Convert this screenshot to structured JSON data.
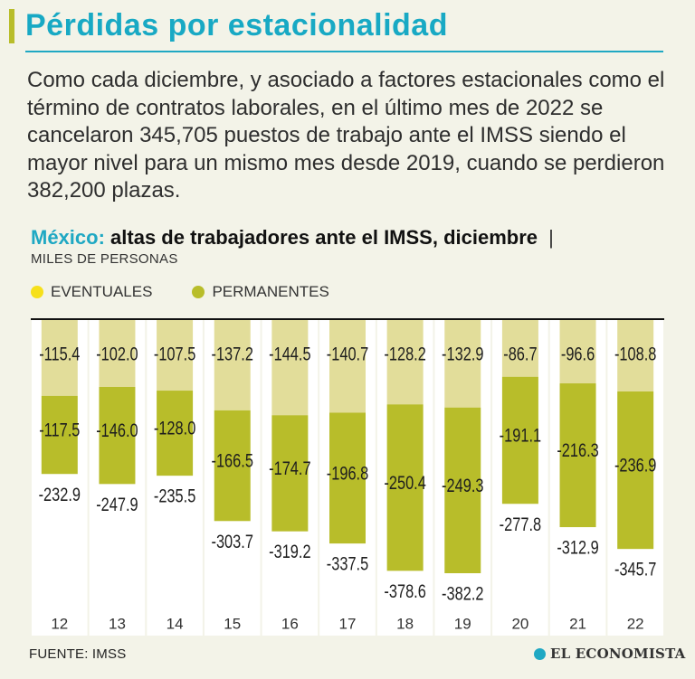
{
  "header": {
    "title": "Pérdidas por estacionalidad",
    "intro": "Como cada diciembre, y asociado a factores estacionales como el término de contratos laborales, en el último mes de 2022 se cancelaron 345,705 puestos de trabajo ante el IMSS siendo el mayor nivel para un mismo mes desde 2019, cuando se perdieron 382,200 plazas."
  },
  "chart_header": {
    "country": "México:",
    "title": "altas de trabajadores ante el IMSS, diciembre",
    "separator": "|",
    "units": "MILES DE PERSONAS"
  },
  "colors": {
    "eventuales": "#e2dd9a",
    "permanentes": "#b8bd2a",
    "legend_eventuales": "#f6e01b",
    "accent": "#1fa8c3"
  },
  "chart_data": {
    "type": "bar",
    "stacked": true,
    "title": "México: altas de trabajadores ante el IMSS, diciembre",
    "ylabel": "MILES DE PERSONAS",
    "legend": [
      "EVENTUALES",
      "PERMANENTES"
    ],
    "categories": [
      "12",
      "13",
      "14",
      "15",
      "16",
      "17",
      "18",
      "19",
      "20",
      "21",
      "22"
    ],
    "series": [
      {
        "name": "EVENTUALES",
        "values": [
          -115.4,
          -102.0,
          -107.5,
          -137.2,
          -144.5,
          -140.7,
          -128.2,
          -132.9,
          -86.7,
          -96.6,
          -108.8
        ]
      },
      {
        "name": "PERMANENTES",
        "values": [
          -117.5,
          -146.0,
          -128.0,
          -166.5,
          -174.7,
          -196.8,
          -250.4,
          -249.3,
          -191.1,
          -216.3,
          -236.9
        ]
      }
    ],
    "totals": [
      -232.9,
      -247.9,
      -235.5,
      -303.7,
      -319.2,
      -337.5,
      -378.6,
      -382.2,
      -277.8,
      -312.9,
      -345.7
    ],
    "ylim": [
      -382.2,
      0
    ],
    "grid": false
  },
  "footer": {
    "source": "FUENTE: IMSS",
    "brand": "EL ECONOMISTA"
  }
}
